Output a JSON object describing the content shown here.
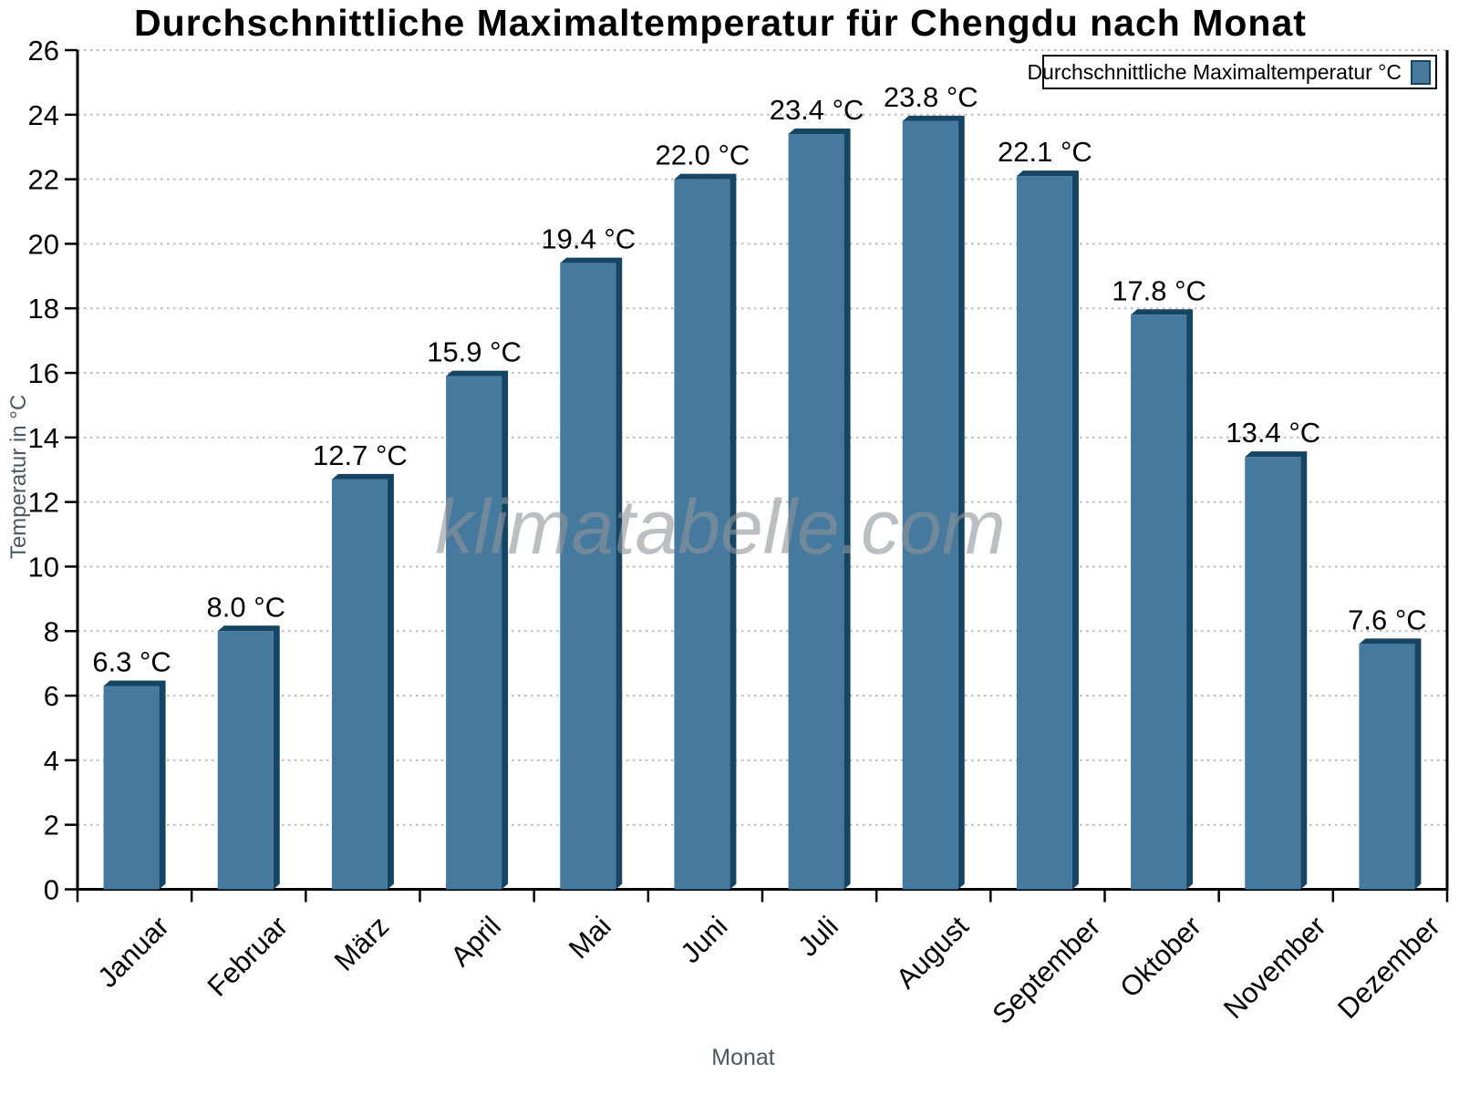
{
  "title": "Durchschnittliche Maximaltemperatur für Chengdu nach Monat",
  "watermark": "klimatabelle.com",
  "legend": {
    "label": "Durchschnittliche Maximaltemperatur °C"
  },
  "axes": {
    "y_label": "Temperatur in °C",
    "x_label": "Monat",
    "y_tick_labels": [
      "0",
      "2",
      "4",
      "6",
      "8",
      "10",
      "12",
      "14",
      "16",
      "18",
      "20",
      "22",
      "24",
      "26"
    ]
  },
  "chart_data": {
    "type": "bar",
    "title": "Durchschnittliche Maximaltemperatur für Chengdu nach Monat",
    "categories": [
      "Januar",
      "Februar",
      "März",
      "April",
      "Mai",
      "Juni",
      "Juli",
      "August",
      "September",
      "Oktober",
      "November",
      "Dezember"
    ],
    "values": [
      6.3,
      8.0,
      12.7,
      15.9,
      19.4,
      22.0,
      23.4,
      23.8,
      22.1,
      17.8,
      13.4,
      7.6
    ],
    "value_labels": [
      "6.3 °C",
      "8.0 °C",
      "12.7 °C",
      "15.9 °C",
      "19.4 °C",
      "22.0 °C",
      "23.4 °C",
      "23.8 °C",
      "22.1 °C",
      "17.8 °C",
      "13.4 °C",
      "7.6 °C"
    ],
    "unit": "°C",
    "xlabel": "Monat",
    "ylabel": "Temperatur in °C",
    "ylim": [
      0,
      26
    ],
    "y_ticks": [
      0,
      2,
      4,
      6,
      8,
      10,
      12,
      14,
      16,
      18,
      20,
      22,
      24,
      26
    ],
    "grid": "dotted horizontal gridlines at every y tick",
    "legend_label": "Durchschnittliche Maximaltemperatur °C",
    "legend_position": "top-right",
    "colors": {
      "bar_face": "#45799e",
      "bar_edge": "#164563",
      "grid": "#bbbbbb",
      "axis": "#000000",
      "axis_title_gray": "#4d5761",
      "watermark_gray": "#8f959a",
      "value_label": "#000000",
      "tick_label": "#000000"
    }
  }
}
